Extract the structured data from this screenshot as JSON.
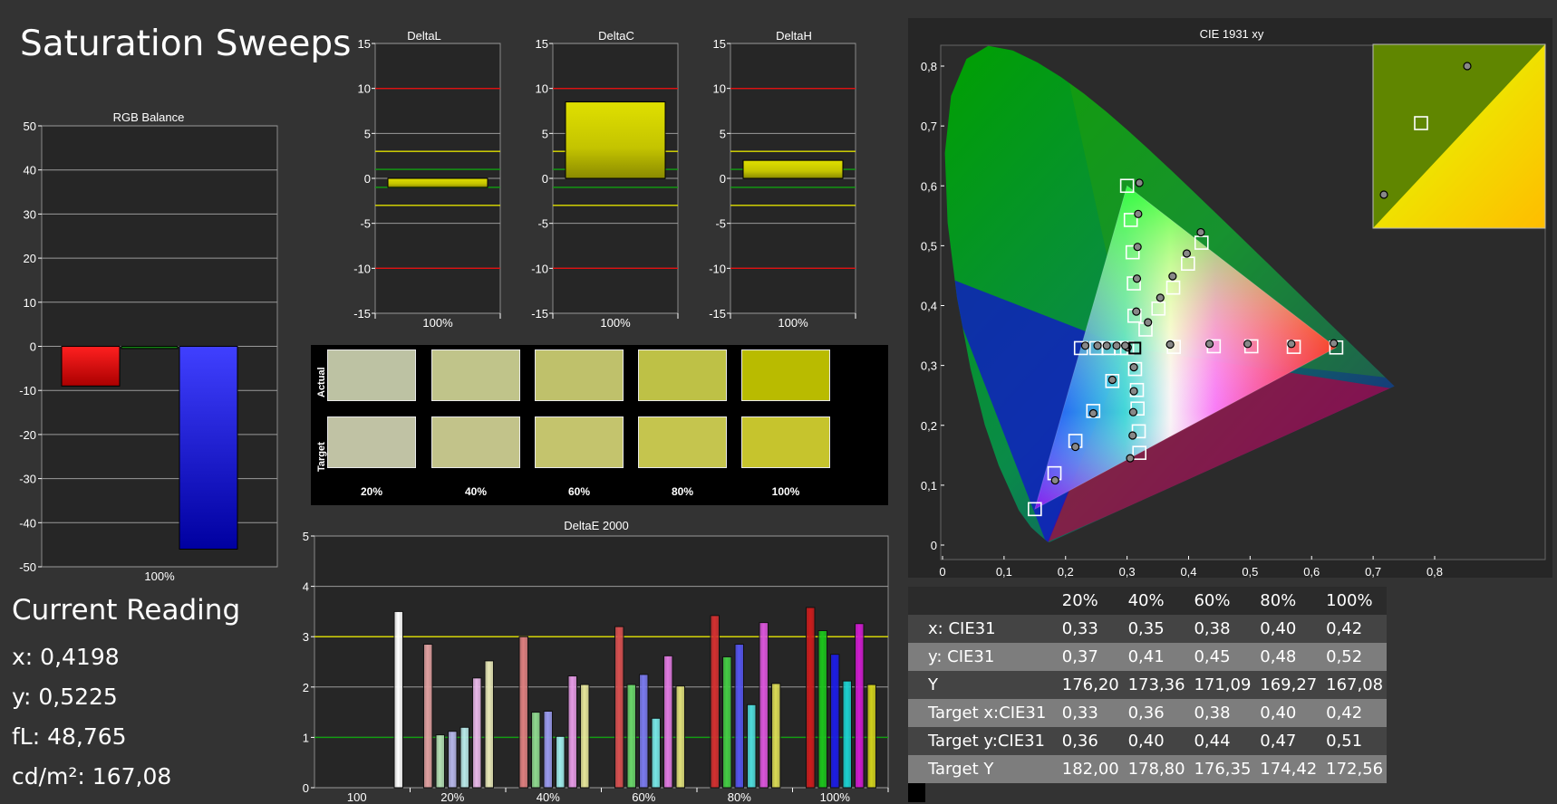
{
  "page": {
    "title": "Saturation Sweeps"
  },
  "reading": {
    "title": "Current Reading",
    "x": "x: 0,4198",
    "y": "y: 0,5225",
    "fl": "fL: 48,765",
    "cdm2": "cd/m²: 167,08"
  },
  "swatches": {
    "actual_label": "Actual",
    "target_label": "Target",
    "levels": [
      "20%",
      "40%",
      "60%",
      "80%",
      "100%"
    ],
    "actual_colors": [
      "#bdc2a3",
      "#c0c48a",
      "#bfc16b",
      "#bec146",
      "#b9bb00"
    ],
    "target_colors": [
      "#c0c2a4",
      "#c2c38a",
      "#c4c46d",
      "#c5c54e",
      "#c6c42d"
    ]
  },
  "table": {
    "header": [
      "",
      "20%",
      "40%",
      "60%",
      "80%",
      "100%"
    ],
    "rows": [
      {
        "label": "x: CIE31",
        "values": [
          "0,33",
          "0,35",
          "0,38",
          "0,40",
          "0,42"
        ]
      },
      {
        "label": "y: CIE31",
        "values": [
          "0,37",
          "0,41",
          "0,45",
          "0,48",
          "0,52"
        ]
      },
      {
        "label": "Y",
        "values": [
          "176,20",
          "173,36",
          "171,09",
          "169,27",
          "167,08"
        ]
      },
      {
        "label": "Target x:CIE31",
        "values": [
          "0,33",
          "0,36",
          "0,38",
          "0,40",
          "0,42"
        ]
      },
      {
        "label": "Target y:CIE31",
        "values": [
          "0,36",
          "0,40",
          "0,44",
          "0,47",
          "0,51"
        ]
      },
      {
        "label": "Target Y",
        "values": [
          "182,00",
          "178,80",
          "176,35",
          "174,42",
          "172,56"
        ]
      }
    ]
  },
  "chart_data": [
    {
      "type": "bar",
      "title": "RGB Balance",
      "categories": [
        "100%"
      ],
      "ylim": [
        -50,
        50
      ],
      "yticks": [
        50,
        40,
        30,
        20,
        10,
        0,
        -10,
        -20,
        -30,
        -40,
        -50
      ],
      "series": [
        {
          "color": "red",
          "values": [
            -9
          ]
        },
        {
          "color": "green",
          "values": [
            -0.5
          ]
        },
        {
          "color": "blue",
          "values": [
            -46
          ]
        }
      ]
    },
    {
      "type": "bar",
      "title": "DeltaL",
      "categories": [
        "100%"
      ],
      "values": [
        -1
      ],
      "ylim": [
        -15,
        15
      ],
      "yticks": [
        15,
        10,
        5,
        0,
        -5,
        -10,
        -15
      ],
      "threshold_lines": [
        {
          "value": 10,
          "color": "red"
        },
        {
          "value": -10,
          "color": "red"
        },
        {
          "value": 3,
          "color": "yellow"
        },
        {
          "value": -3,
          "color": "yellow"
        },
        {
          "value": 1,
          "color": "green"
        },
        {
          "value": -1,
          "color": "green"
        }
      ]
    },
    {
      "type": "bar",
      "title": "DeltaC",
      "categories": [
        "100%"
      ],
      "values": [
        8.5
      ],
      "ylim": [
        -15,
        15
      ],
      "yticks": [
        15,
        10,
        5,
        0,
        -5,
        -10,
        -15
      ],
      "threshold_lines": [
        {
          "value": 10,
          "color": "red"
        },
        {
          "value": -10,
          "color": "red"
        },
        {
          "value": 3,
          "color": "yellow"
        },
        {
          "value": -3,
          "color": "yellow"
        },
        {
          "value": 1,
          "color": "green"
        },
        {
          "value": -1,
          "color": "green"
        }
      ]
    },
    {
      "type": "bar",
      "title": "DeltaH",
      "categories": [
        "100%"
      ],
      "values": [
        2
      ],
      "ylim": [
        -15,
        15
      ],
      "yticks": [
        15,
        10,
        5,
        0,
        -5,
        -10,
        -15
      ],
      "threshold_lines": [
        {
          "value": 10,
          "color": "red"
        },
        {
          "value": -10,
          "color": "red"
        },
        {
          "value": 3,
          "color": "yellow"
        },
        {
          "value": -3,
          "color": "yellow"
        },
        {
          "value": 1,
          "color": "green"
        },
        {
          "value": -1,
          "color": "green"
        }
      ]
    },
    {
      "type": "bar",
      "title": "DeltaE 2000",
      "categories": [
        "100",
        "20%",
        "40%",
        "60%",
        "80%",
        "100%"
      ],
      "ylim": [
        0,
        5
      ],
      "yticks": [
        5,
        4,
        3,
        2,
        1,
        0
      ],
      "threshold_lines": [
        {
          "value": 3,
          "color": "yellow"
        },
        {
          "value": 1,
          "color": "green"
        }
      ],
      "groups": [
        {
          "category": "100",
          "bars": [
            {
              "color": "#ffffff",
              "value": 3.5
            }
          ]
        },
        {
          "category": "20%",
          "bars": [
            {
              "color": "#e0a0a0",
              "value": 2.85
            },
            {
              "color": "#b5e0b5",
              "value": 1.05
            },
            {
              "color": "#b5b5e8",
              "value": 1.12
            },
            {
              "color": "#b8e8e8",
              "value": 1.2
            },
            {
              "color": "#e8b8e8",
              "value": 2.18
            },
            {
              "color": "#e8e8b8",
              "value": 2.52
            }
          ]
        },
        {
          "category": "40%",
          "bars": [
            {
              "color": "#dd7f7f",
              "value": 3.0
            },
            {
              "color": "#8fd88f",
              "value": 1.5
            },
            {
              "color": "#9a9aee",
              "value": 1.52
            },
            {
              "color": "#a0eded",
              "value": 1.02
            },
            {
              "color": "#e59ae5",
              "value": 2.22
            },
            {
              "color": "#e5e59a",
              "value": 2.05
            }
          ]
        },
        {
          "category": "60%",
          "bars": [
            {
              "color": "#d85050",
              "value": 3.2
            },
            {
              "color": "#6ad66a",
              "value": 2.05
            },
            {
              "color": "#7a7aee",
              "value": 2.25
            },
            {
              "color": "#77e6e6",
              "value": 1.38
            },
            {
              "color": "#e07ae0",
              "value": 2.62
            },
            {
              "color": "#e0e07a",
              "value": 2.02
            }
          ]
        },
        {
          "category": "80%",
          "bars": [
            {
              "color": "#d43030",
              "value": 3.42
            },
            {
              "color": "#44cc44",
              "value": 2.6
            },
            {
              "color": "#5555f0",
              "value": 2.85
            },
            {
              "color": "#4fdcdc",
              "value": 1.65
            },
            {
              "color": "#da55da",
              "value": 3.28
            },
            {
              "color": "#dada55",
              "value": 2.07
            }
          ]
        },
        {
          "category": "100%",
          "bars": [
            {
              "color": "#cc1c1c",
              "value": 3.58
            },
            {
              "color": "#1cc41c",
              "value": 3.12
            },
            {
              "color": "#1c1ce6",
              "value": 2.65
            },
            {
              "color": "#1cd0d0",
              "value": 2.12
            },
            {
              "color": "#d01cd0",
              "value": 3.26
            },
            {
              "color": "#d0d01c",
              "value": 2.05
            }
          ]
        }
      ]
    },
    {
      "type": "scatter",
      "title": "CIE 1931 xy",
      "xlim": [
        0,
        0.8
      ],
      "ylim": [
        0,
        0.8
      ],
      "xticks": [
        "0",
        "0,1",
        "0,2",
        "0,3",
        "0,4",
        "0,5",
        "0,6",
        "0,7",
        "0,8"
      ],
      "yticks": [
        "0",
        "0,1",
        "0,2",
        "0,3",
        "0,4",
        "0,5",
        "0,6",
        "0,7",
        "0,8"
      ],
      "gamut": [
        [
          0.64,
          0.33
        ],
        [
          0.3,
          0.6
        ],
        [
          0.15,
          0.06
        ]
      ],
      "white_point": [
        0.3127,
        0.329
      ],
      "targets": [
        [
          0.64,
          0.33
        ],
        [
          0.571,
          0.331
        ],
        [
          0.502,
          0.332
        ],
        [
          0.441,
          0.332
        ],
        [
          0.376,
          0.331
        ],
        [
          0.3,
          0.6
        ],
        [
          0.306,
          0.543
        ],
        [
          0.309,
          0.489
        ],
        [
          0.311,
          0.437
        ],
        [
          0.312,
          0.383
        ],
        [
          0.15,
          0.06
        ],
        [
          0.182,
          0.12
        ],
        [
          0.216,
          0.174
        ],
        [
          0.245,
          0.224
        ],
        [
          0.276,
          0.274
        ],
        [
          0.225,
          0.329
        ],
        [
          0.25,
          0.329
        ],
        [
          0.27,
          0.329
        ],
        [
          0.29,
          0.329
        ],
        [
          0.3,
          0.329
        ],
        [
          0.32,
          0.154
        ],
        [
          0.319,
          0.19
        ],
        [
          0.317,
          0.228
        ],
        [
          0.316,
          0.259
        ],
        [
          0.313,
          0.294
        ],
        [
          0.421,
          0.505
        ],
        [
          0.399,
          0.47
        ],
        [
          0.375,
          0.43
        ],
        [
          0.351,
          0.395
        ],
        [
          0.33,
          0.36
        ]
      ],
      "measured": [
        [
          0.636,
          0.337
        ],
        [
          0.567,
          0.336
        ],
        [
          0.496,
          0.336
        ],
        [
          0.434,
          0.336
        ],
        [
          0.37,
          0.335
        ],
        [
          0.32,
          0.605
        ],
        [
          0.318,
          0.553
        ],
        [
          0.317,
          0.498
        ],
        [
          0.316,
          0.445
        ],
        [
          0.315,
          0.39
        ],
        [
          0.183,
          0.108
        ],
        [
          0.216,
          0.164
        ],
        [
          0.245,
          0.22
        ],
        [
          0.276,
          0.276
        ],
        [
          0.301,
          0.33
        ],
        [
          0.232,
          0.333
        ],
        [
          0.252,
          0.333
        ],
        [
          0.267,
          0.333
        ],
        [
          0.283,
          0.333
        ],
        [
          0.297,
          0.333
        ],
        [
          0.305,
          0.145
        ],
        [
          0.309,
          0.183
        ],
        [
          0.31,
          0.222
        ],
        [
          0.311,
          0.257
        ],
        [
          0.311,
          0.297
        ],
        [
          0.4198,
          0.5225
        ],
        [
          0.397,
          0.487
        ],
        [
          0.374,
          0.449
        ],
        [
          0.354,
          0.413
        ],
        [
          0.334,
          0.372
        ]
      ],
      "inset_points": [
        [
          0.4198,
          0.5225
        ],
        [
          0.405,
          0.495
        ],
        [
          0.421,
          0.505
        ]
      ]
    }
  ]
}
